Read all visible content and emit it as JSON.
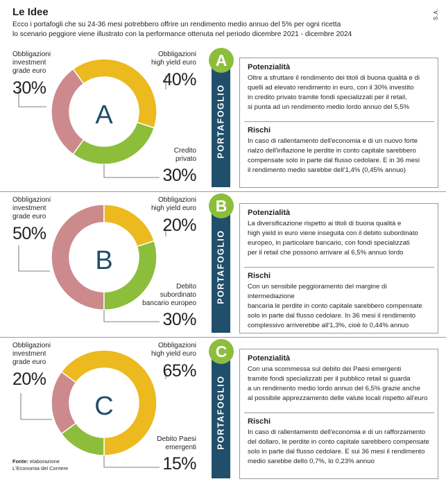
{
  "header": {
    "title": "Le Idee",
    "signature": "S.A.",
    "subtitle_line1": "Ecco i portafogli che su 24-36 mesi potrebbero offrire un rendimento medio annuo del 5% per ogni ricetta",
    "subtitle_line2": "lo scenario peggiore viene illustrato con la performance ottenuta nel periodo dicembre 2021 - dicembre 2024"
  },
  "source": {
    "label": "Fonte:",
    "text1": "elaborazione",
    "text2": "L'Economia del Corriere"
  },
  "colors": {
    "green": "#8cbe3c",
    "yellow": "#ecb91f",
    "pink": "#cc8a8c",
    "band": "#1f4f6b"
  },
  "portfolios": [
    {
      "letter": "A",
      "band_label": "PORTAFOGLIO",
      "segments": [
        {
          "label_line1": "Obbligazioni",
          "label_line2": "investment",
          "label_line3": "grade euro",
          "pct": "30%",
          "value": 30,
          "color": "#cc8a8c"
        },
        {
          "label_line1": "Obbligazioni",
          "label_line2": "high yield euro",
          "label_line3": "",
          "pct": "40%",
          "value": 40,
          "color": "#ecb91f"
        },
        {
          "label_line1": "Credito",
          "label_line2": "privato",
          "label_line3": "",
          "pct": "30%",
          "value": 30,
          "color": "#8cbe3c"
        }
      ],
      "potenziale_title": "Potenzialità",
      "potenziale_lines": [
        "Oltre a sfruttare il rendimento dei titoli di buona qualità e di",
        "quelli ad elevato rendimento in euro, con il 30% investito",
        "in credito privato tramite fondi specializzati per il retail,",
        "si punta ad un rendimento medio lordo annuo del 5,5%"
      ],
      "rischi_title": "Rischi",
      "rischi_lines": [
        "In caso di rallentamento dell'economia e di un nuovo forte",
        "rialzo dell'inflazione le perdite in conto capitale sarebbero",
        "compensate solo in parte dal flusso cedolare. E in 36 mesi",
        "il rendimento medio sarebbe dell'1,4% (0,45% annuo)"
      ]
    },
    {
      "letter": "B",
      "band_label": "PORTAFOGLIO",
      "segments": [
        {
          "label_line1": "Obbligazioni",
          "label_line2": "investment",
          "label_line3": "grade euro",
          "pct": "50%",
          "value": 50,
          "color": "#cc8a8c"
        },
        {
          "label_line1": "Obbligazioni",
          "label_line2": "high yield euro",
          "label_line3": "",
          "pct": "20%",
          "value": 20,
          "color": "#ecb91f"
        },
        {
          "label_line1": "Debito",
          "label_line2": "subordinato",
          "label_line3": "bancario europeo",
          "pct": "30%",
          "value": 30,
          "color": "#8cbe3c"
        }
      ],
      "potenziale_title": "Potenzialità",
      "potenziale_lines": [
        "La diversificazione rispetto ai titoli di buona qualità e",
        "high yield in euro viene inseguita con il debito subordinato",
        "europeo, in particolare bancario, con fondi specializzati",
        "per il retail che possono arrivare al 6,5% annuo lordo"
      ],
      "rischi_title": "Rischi",
      "rischi_lines": [
        "Con un sensibile peggioramento del margine di intermediazione",
        "bancaria le perdite in conto capitale sarebbero compensate",
        "solo in parte dal flusso cedolare. In 36 mesi il rendimento",
        "complessivo arriverebbe all'1,3%, cioè lo 0,44% annuo"
      ]
    },
    {
      "letter": "C",
      "band_label": "PORTAFOGLIO",
      "segments": [
        {
          "label_line1": "Obbligazioni",
          "label_line2": "investment",
          "label_line3": "grade euro",
          "pct": "20%",
          "value": 20,
          "color": "#cc8a8c"
        },
        {
          "label_line1": "Obbligazioni",
          "label_line2": "high yield euro",
          "label_line3": "",
          "pct": "65%",
          "value": 65,
          "color": "#ecb91f"
        },
        {
          "label_line1": "Debito Paesi",
          "label_line2": "emergenti",
          "label_line3": "",
          "pct": "15%",
          "value": 15,
          "color": "#8cbe3c"
        }
      ],
      "potenziale_title": "Potenzialità",
      "potenziale_lines": [
        "Con una scommessa sul debito dei Paesi emergenti",
        "tramite fondi specializzati per il pubblico retail si guarda",
        "a un rendimento medio lordo annuo del 6,5% grazie anche",
        "al possibile apprezzamento delle valute locali rispetto all'euro"
      ],
      "rischi_title": "Rischi",
      "rischi_lines": [
        "In caso di rallentamento dell'economia e di un rafforzamento",
        "del dollaro, le perdite in conto capitale sarebbero compensate",
        "solo in parte dal flusso cedolare. E sui 36 mesi il rendimento",
        "medio sarebbe dello 0,7%, lo 0,23% annuo"
      ]
    }
  ],
  "chart_data": [
    {
      "type": "pie",
      "title": "A",
      "categories": [
        "Obbligazioni investment grade euro",
        "Obbligazioni high yield euro",
        "Credito privato"
      ],
      "values": [
        30,
        40,
        30
      ]
    },
    {
      "type": "pie",
      "title": "B",
      "categories": [
        "Obbligazioni investment grade euro",
        "Obbligazioni high yield euro",
        "Debito subordinato bancario europeo"
      ],
      "values": [
        50,
        20,
        30
      ]
    },
    {
      "type": "pie",
      "title": "C",
      "categories": [
        "Obbligazioni investment grade euro",
        "Obbligazioni high yield euro",
        "Debito Paesi emergenti"
      ],
      "values": [
        20,
        65,
        15
      ]
    }
  ]
}
